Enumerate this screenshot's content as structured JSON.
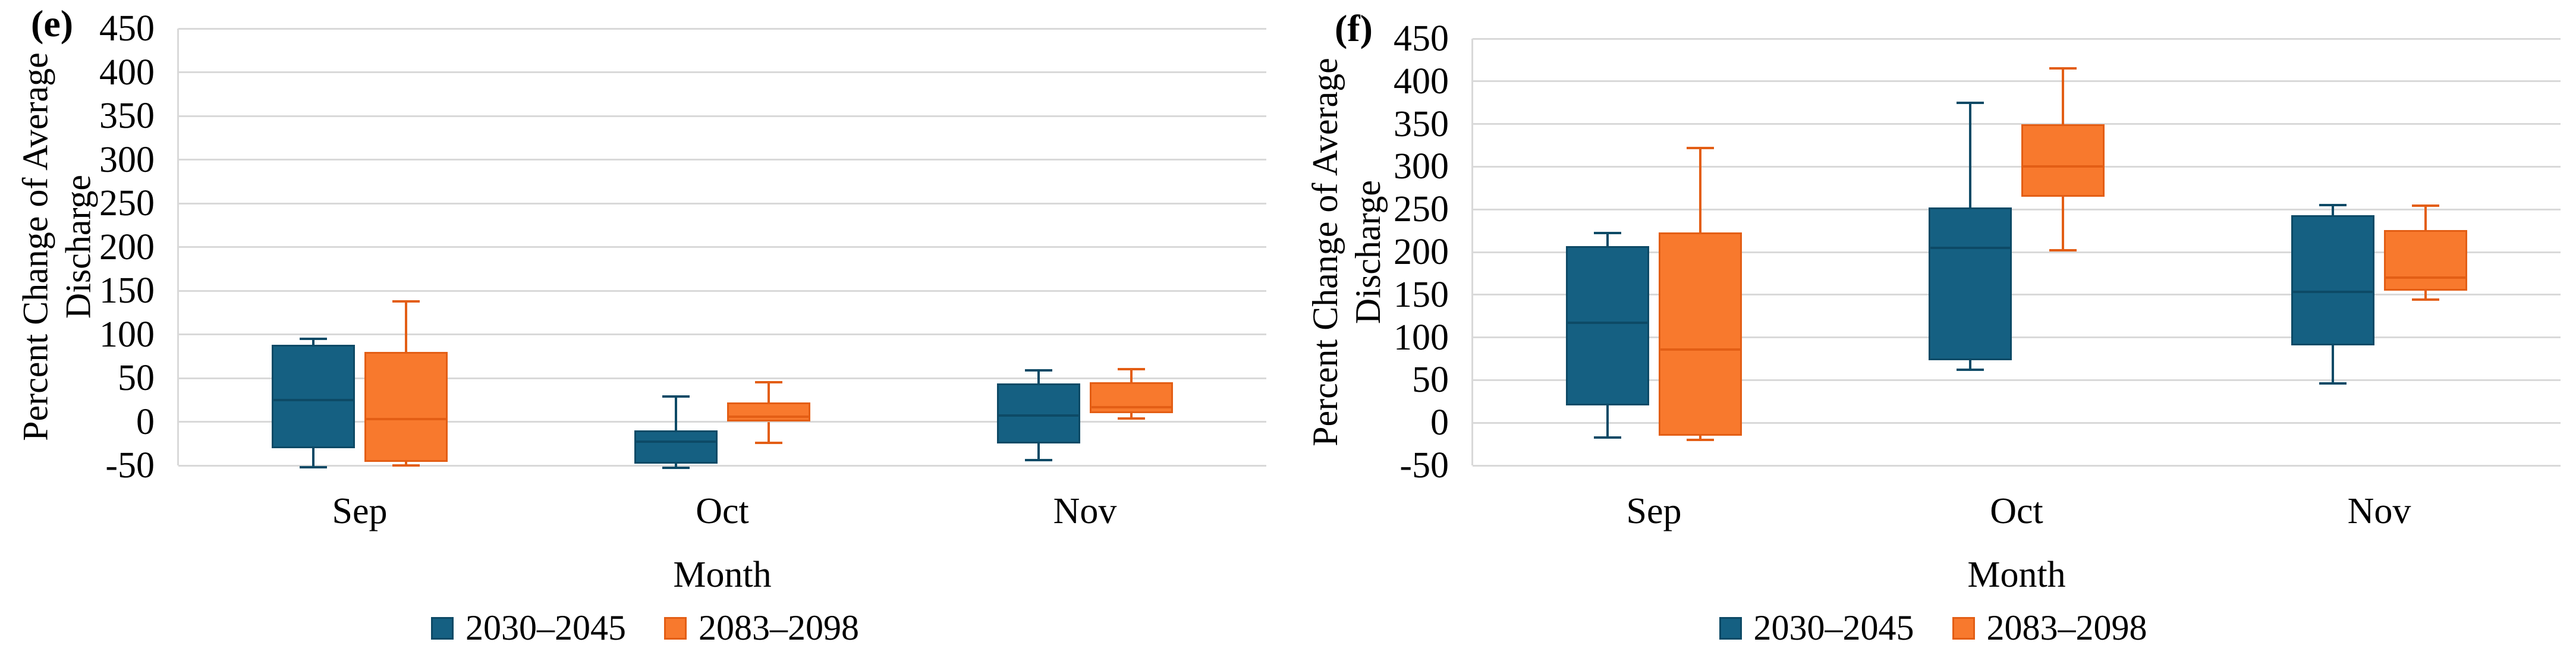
{
  "figure_caption_labels": {
    "left": "(e)",
    "right": "(f)"
  },
  "palette": {
    "series1_fill": "#156082",
    "series1_line": "#0D4A66",
    "series2_fill": "#F8792D",
    "series2_line": "#E35E15",
    "gridline": "#D9D9D9",
    "text": "#000000",
    "background": "#FFFFFF"
  },
  "chart_data": [
    {
      "type": "boxplot",
      "panel_label": "(e)",
      "title": "",
      "xlabel": "Month",
      "ylabel": "Percent Change of Average Discharge",
      "ylabel_lines": [
        "Percent Change of Average",
        "Discharge"
      ],
      "categories": [
        "Sep",
        "Oct",
        "Nov"
      ],
      "ylim": [
        -50,
        450
      ],
      "yticks": [
        450,
        400,
        350,
        300,
        250,
        200,
        150,
        100,
        50,
        0,
        -50
      ],
      "grid": true,
      "legend_position": "bottom",
      "series": [
        {
          "name": "2030–2045",
          "color": "#156082",
          "line_color": "#0D4A66",
          "boxes": [
            {
              "category": "Sep",
              "low": -52,
              "q1": -30,
              "median": 25,
              "q3": 88,
              "high": 95
            },
            {
              "category": "Oct",
              "low": -53,
              "q1": -48,
              "median": -23,
              "q3": -10,
              "high": 29
            },
            {
              "category": "Nov",
              "low": -44,
              "q1": -25,
              "median": 7,
              "q3": 44,
              "high": 59
            }
          ]
        },
        {
          "name": "2083–2098",
          "color": "#F8792D",
          "line_color": "#E35E15",
          "boxes": [
            {
              "category": "Sep",
              "low": -50,
              "q1": -46,
              "median": 3,
              "q3": 80,
              "high": 138
            },
            {
              "category": "Oct",
              "low": -24,
              "q1": 0,
              "median": 6,
              "q3": 22,
              "high": 45
            },
            {
              "category": "Nov",
              "low": 4,
              "q1": 10,
              "median": 17,
              "q3": 45,
              "high": 60
            }
          ]
        }
      ]
    },
    {
      "type": "boxplot",
      "panel_label": "(f)",
      "title": "",
      "xlabel": "Month",
      "ylabel": "Percent Change of Average Discharge",
      "ylabel_lines": [
        "Percent Change of Average",
        "Discharge"
      ],
      "categories": [
        "Sep",
        "Oct",
        "Nov"
      ],
      "ylim": [
        -50,
        450
      ],
      "yticks": [
        450,
        400,
        350,
        300,
        250,
        200,
        150,
        100,
        50,
        0,
        -50
      ],
      "grid": true,
      "legend_position": "bottom",
      "series": [
        {
          "name": "2030–2045",
          "color": "#156082",
          "line_color": "#0D4A66",
          "boxes": [
            {
              "category": "Sep",
              "low": -17,
              "q1": 20,
              "median": 117,
              "q3": 207,
              "high": 222
            },
            {
              "category": "Oct",
              "low": 62,
              "q1": 73,
              "median": 205,
              "q3": 252,
              "high": 375
            },
            {
              "category": "Nov",
              "low": 46,
              "q1": 91,
              "median": 153,
              "q3": 243,
              "high": 255
            }
          ]
        },
        {
          "name": "2083–2098",
          "color": "#F8792D",
          "line_color": "#E35E15",
          "boxes": [
            {
              "category": "Sep",
              "low": -20,
              "q1": -15,
              "median": 86,
              "q3": 223,
              "high": 322
            },
            {
              "category": "Oct",
              "low": 202,
              "q1": 265,
              "median": 300,
              "q3": 350,
              "high": 415
            },
            {
              "category": "Nov",
              "low": 144,
              "q1": 155,
              "median": 170,
              "q3": 226,
              "high": 254
            }
          ]
        }
      ]
    }
  ]
}
